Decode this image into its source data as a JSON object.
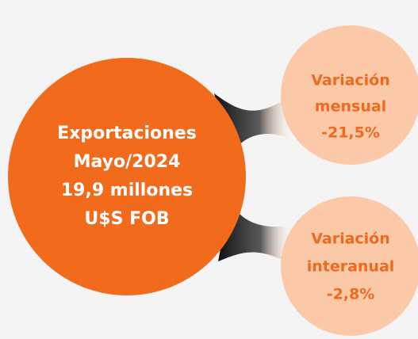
{
  "main": {
    "lines": [
      "Exportaciones",
      "Mayo/2024",
      "19,9 millones",
      "U$S FOB"
    ]
  },
  "monthly": {
    "lines": [
      "Variación",
      "mensual",
      "-21,5%"
    ]
  },
  "annual": {
    "lines": [
      "Variación",
      "interanual",
      "-2,8%"
    ]
  }
}
